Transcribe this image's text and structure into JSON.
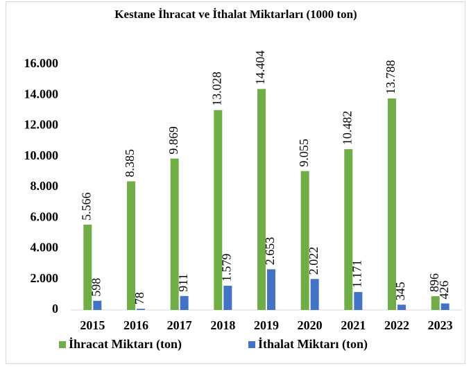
{
  "chart_data": {
    "type": "bar",
    "title": "Kestane İhracat ve İthalat Miktarları (1000 ton)",
    "categories": [
      "2015",
      "2016",
      "2017",
      "2018",
      "2019",
      "2020",
      "2021",
      "2022",
      "2023"
    ],
    "series": [
      {
        "name": "İhracat Miktarı (ton)",
        "color": "#70ad47",
        "values": [
          5566,
          8385,
          9869,
          13028,
          14404,
          9055,
          10482,
          13788,
          896
        ],
        "value_labels": [
          "5.566",
          "8.385",
          "9.869",
          "13.028",
          "14.404",
          "9.055",
          "10.482",
          "13.788",
          "896"
        ]
      },
      {
        "name": "İthalat Miktarı (ton)",
        "color": "#4472c4",
        "values": [
          598,
          78,
          911,
          1579,
          2653,
          2022,
          1171,
          345,
          426
        ],
        "value_labels": [
          "598",
          "78",
          "911",
          "1.579",
          "2.653",
          "2.022",
          "1.171",
          "345",
          "426"
        ]
      }
    ],
    "ylim": [
      0,
      16000
    ],
    "yticks": [
      0,
      {
        "value": 2000,
        "label": "2.000"
      },
      {
        "value": 4000,
        "label": "4.000"
      },
      {
        "value": 6000,
        "label": "6.000"
      },
      {
        "value": 8000,
        "label": "8.000"
      },
      {
        "value": 10000,
        "label": "10.000"
      },
      {
        "value": 12000,
        "label": "12.000"
      },
      {
        "value": 14000,
        "label": "14.000"
      },
      {
        "value": 16000,
        "label": "16.000"
      }
    ],
    "grid": false,
    "legend": "bottom"
  }
}
